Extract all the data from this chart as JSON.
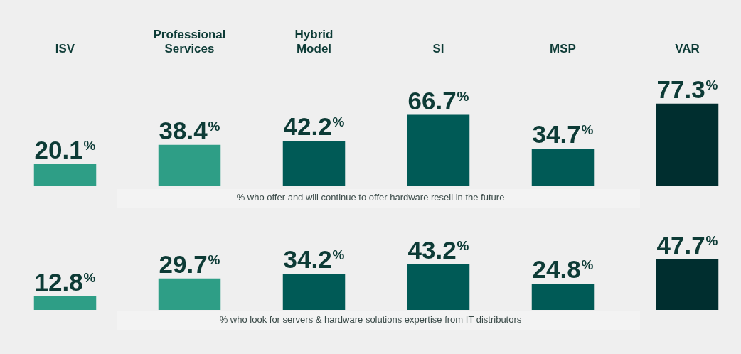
{
  "chart_data": [
    {
      "type": "bar",
      "categories": [
        "ISV",
        "Professional Services",
        "Hybrid Model",
        "SI",
        "MSP",
        "VAR"
      ],
      "values": [
        20.1,
        38.4,
        42.2,
        66.7,
        34.7,
        77.3
      ],
      "colors": [
        "#2e9e86",
        "#2e9e86",
        "#005a56",
        "#005a56",
        "#005a56",
        "#002e2f"
      ],
      "value_labels": [
        "20.1%",
        "38.4%",
        "42.2%",
        "66.7%",
        "34.7%",
        "77.3%"
      ],
      "annotations": [
        "% who offer and will continue to offer hardware resell in the future"
      ],
      "grid": false,
      "legend": false
    },
    {
      "type": "bar",
      "categories": [
        null,
        null,
        null,
        null,
        null,
        null
      ],
      "values": [
        12.8,
        29.7,
        34.2,
        43.2,
        24.8,
        47.7
      ],
      "colors": [
        "#2e9e86",
        "#2e9e86",
        "#005a56",
        "#005a56",
        "#005a56",
        "#002e2f"
      ],
      "value_labels": [
        "12.8%",
        "29.7%",
        "34.2%",
        "43.2%",
        "24.8%",
        "47.7%"
      ],
      "annotations": [
        "% who look for servers & hardware solutions expertise from IT distributors"
      ],
      "grid": false,
      "legend": false
    }
  ]
}
